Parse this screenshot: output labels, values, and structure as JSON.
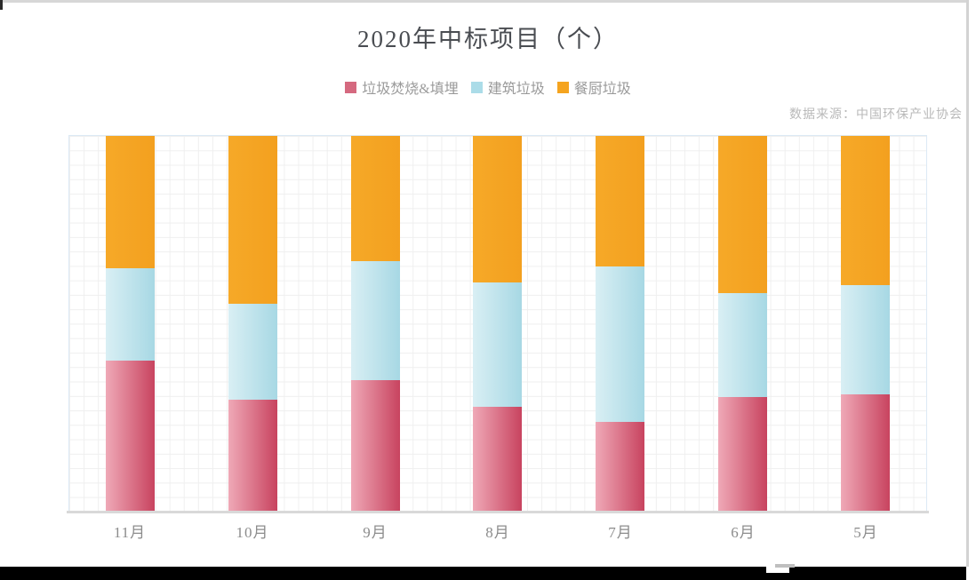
{
  "page": {
    "title": "2020年中标项目（个）",
    "source_note": "数据来源：中国环保产业协会"
  },
  "legend": {
    "position": "top-center",
    "items": [
      {
        "label": "垃圾焚烧&填埋",
        "color": "#d5697f"
      },
      {
        "label": "建筑垃圾",
        "color": "#abdce8"
      },
      {
        "label": "餐厨垃圾",
        "color": "#f5a41f"
      }
    ]
  },
  "chart_data": {
    "type": "bar",
    "stacked": true,
    "title": "2020年中标项目（个）",
    "categories": [
      "11月",
      "10月",
      "9月",
      "8月",
      "7月",
      "6月",
      "5月"
    ],
    "series": [
      {
        "name": "垃圾焚烧&填埋",
        "color_start": "#efa9b7",
        "color_end": "#c8435f",
        "values_pct": [
          40.0,
          29.6,
          34.8,
          27.7,
          23.8,
          30.3,
          31.0
        ]
      },
      {
        "name": "建筑垃圾",
        "color_start": "#d9eff4",
        "color_end": "#a7d8e4",
        "values_pct": [
          24.8,
          25.5,
          31.9,
          33.3,
          41.4,
          27.7,
          29.1
        ]
      },
      {
        "name": "餐厨垃圾",
        "color_start": "#f6a928",
        "color_end": "#f3a01f",
        "values_pct": [
          35.2,
          44.9,
          33.3,
          39.0,
          34.8,
          42.0,
          39.9
        ]
      }
    ],
    "xlabel": "",
    "ylabel": "",
    "ylim_pct": [
      0,
      100
    ],
    "value_labels_shown": false,
    "axis_tick_values_shown": false,
    "legend_position": "top-center",
    "grid": "fine 16px graph-paper grid inside plot area",
    "note": "Each month column fills the full plot height; segment sizes estimated as percent of column height from pixels (no numeric labels in source image)."
  }
}
